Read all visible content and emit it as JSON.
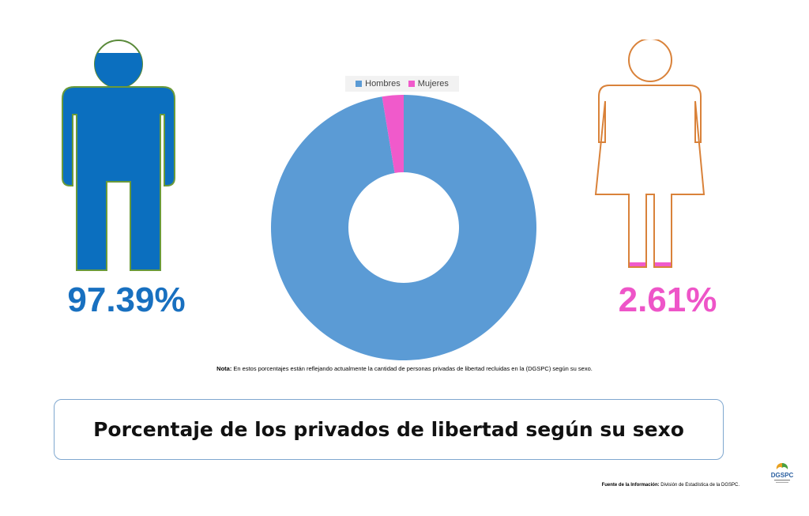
{
  "chart_data": {
    "type": "pie",
    "categories": [
      "Hombres",
      "Mujeres"
    ],
    "values": [
      97.39,
      2.61
    ],
    "unit": "%",
    "donut": true,
    "legend": "top",
    "title": "Porcentaje de los privados de libertad según su sexo",
    "colors": [
      "#5b9bd5",
      "#f05acb"
    ]
  },
  "figures": {
    "men_percent_label": "97.39%",
    "women_percent_label": "2.61%",
    "men_color": "#0b6fbf",
    "women_color": "#f05acb"
  },
  "note": {
    "label": "Nota:",
    "text": " En estos porcentajes están reflejando actualmente la cantidad de personas privadas de libertad recluidas en la (DGSPC) según su sexo."
  },
  "source": {
    "label": "Fuente de la Información:",
    "text": " División de Estadística de la DGSPC."
  },
  "logo": {
    "icon": "dgspc-logo-icon",
    "text": "DGSPC"
  }
}
